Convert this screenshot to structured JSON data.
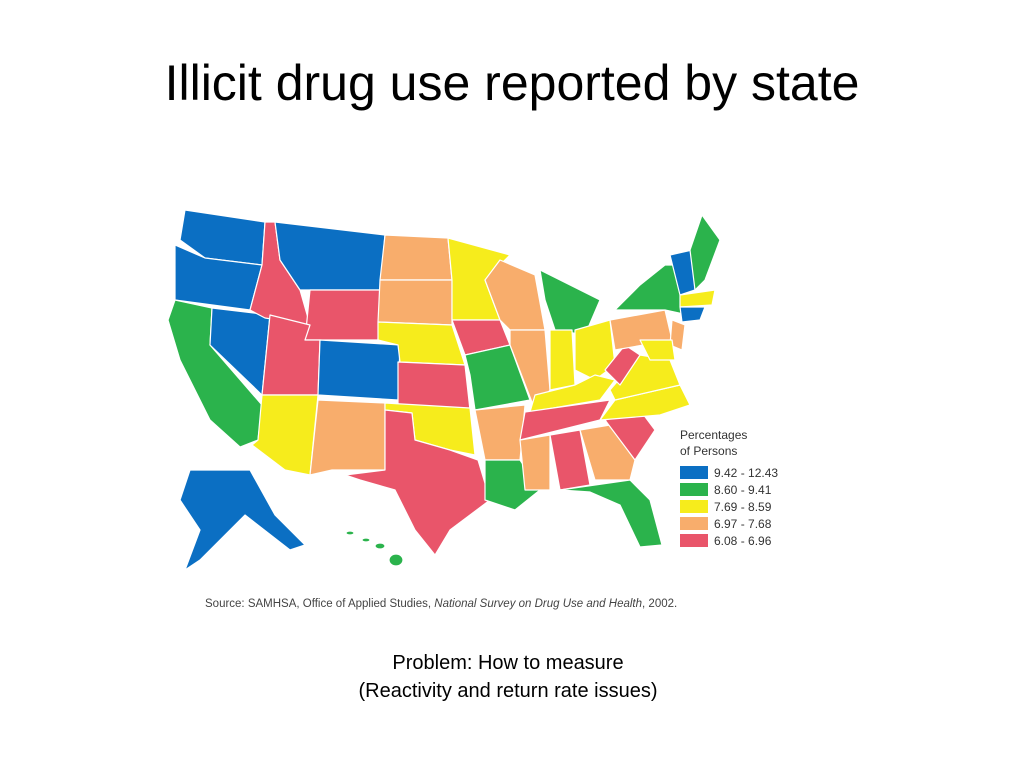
{
  "header": {
    "title": "Illicit drug use reported by state"
  },
  "legend": {
    "title": [
      "Percentages",
      "of Persons"
    ],
    "items": [
      {
        "label": "9.42 - 12.43",
        "color": "#0b6fc3"
      },
      {
        "label": "8.60 - 9.41",
        "color": "#2bb34c"
      },
      {
        "label": "7.69 - 8.59",
        "color": "#f6ec1c"
      },
      {
        "label": "6.97 - 7.68",
        "color": "#f8ad6c"
      },
      {
        "label": "6.08 - 6.96",
        "color": "#e9556a"
      }
    ]
  },
  "source": {
    "prefix": "Source:  SAMHSA, Office of Applied Studies, ",
    "italic": "National Survey on Drug Use and Health",
    "suffix": ", 2002."
  },
  "caption": [
    "Problem: How to measure",
    "(Reactivity and return rate issues)"
  ]
}
